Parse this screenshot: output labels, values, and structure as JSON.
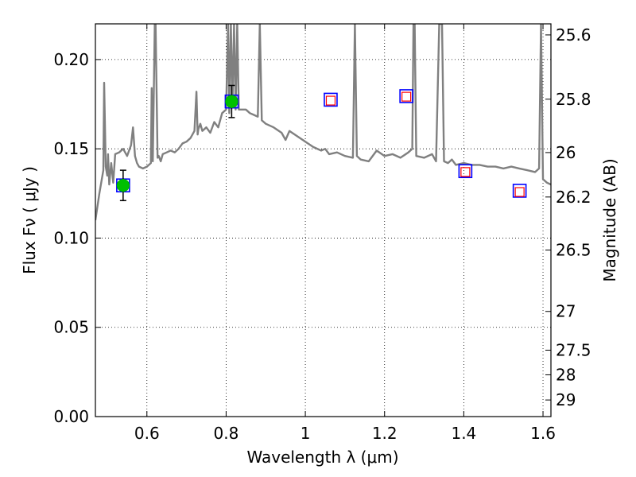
{
  "chart_data": {
    "type": "scatter",
    "xlabel": "Wavelength  λ (μm)",
    "ylabel_left": "Flux  Fν  ( μJy )",
    "ylabel_right": "Magnitude (AB)",
    "xlim": [
      0.47,
      1.62
    ],
    "ylim": [
      0.0,
      0.22
    ],
    "grid": true,
    "x_ticks": [
      0.6,
      0.8,
      1.0,
      1.2,
      1.4,
      1.6
    ],
    "x_tick_labels": [
      "0.6",
      "0.8",
      "1",
      "1.2",
      "1.4",
      "1.6"
    ],
    "y_ticks": [
      0.0,
      0.05,
      0.1,
      0.15,
      0.2
    ],
    "y_tick_labels": [
      "0.00",
      "0.05",
      "0.10",
      "0.15",
      "0.20"
    ],
    "right_ticks": [
      {
        "label": "25.6",
        "flux": 0.2138
      },
      {
        "label": "25.8",
        "flux": 0.1778
      },
      {
        "label": "26",
        "flux": 0.1479
      },
      {
        "label": "26.2",
        "flux": 0.123
      },
      {
        "label": "26.5",
        "flux": 0.0933
      },
      {
        "label": "27",
        "flux": 0.0589
      },
      {
        "label": "27.5",
        "flux": 0.0372
      },
      {
        "label": "28",
        "flux": 0.0234
      },
      {
        "label": "29",
        "flux": 0.0093
      }
    ],
    "observed": [
      {
        "x": 0.54,
        "y": 0.1295,
        "yerr": 0.0085
      },
      {
        "x": 0.814,
        "y": 0.1765,
        "yerr": 0.009
      }
    ],
    "model_band_fluxes": [
      {
        "x": 0.54,
        "y": 0.1295
      },
      {
        "x": 0.814,
        "y": 0.1765
      },
      {
        "x": 1.064,
        "y": 0.1775
      },
      {
        "x": 1.255,
        "y": 0.1795
      },
      {
        "x": 1.404,
        "y": 0.1375
      },
      {
        "x": 1.541,
        "y": 0.1265
      }
    ],
    "predicted": [
      {
        "x": 1.064,
        "y": 0.177
      },
      {
        "x": 1.255,
        "y": 0.1792
      },
      {
        "x": 1.404,
        "y": 0.137
      },
      {
        "x": 1.541,
        "y": 0.1258
      }
    ],
    "spectrum": {
      "x": [
        0.47,
        0.48,
        0.49,
        0.492,
        0.496,
        0.5,
        0.502,
        0.505,
        0.51,
        0.515,
        0.52,
        0.53,
        0.54,
        0.55,
        0.56,
        0.565,
        0.57,
        0.575,
        0.58,
        0.59,
        0.6,
        0.61,
        0.612,
        0.615,
        0.62,
        0.622,
        0.627,
        0.63,
        0.635,
        0.64,
        0.65,
        0.66,
        0.67,
        0.68,
        0.69,
        0.7,
        0.71,
        0.72,
        0.725,
        0.728,
        0.73,
        0.735,
        0.74,
        0.75,
        0.76,
        0.77,
        0.78,
        0.79,
        0.8,
        0.805,
        0.808,
        0.812,
        0.816,
        0.82,
        0.824,
        0.828,
        0.832,
        0.84,
        0.85,
        0.86,
        0.87,
        0.88,
        0.885,
        0.89,
        0.895,
        0.9,
        0.92,
        0.94,
        0.95,
        0.96,
        0.98,
        1.0,
        1.02,
        1.04,
        1.05,
        1.06,
        1.08,
        1.1,
        1.12,
        1.125,
        1.13,
        1.14,
        1.16,
        1.18,
        1.2,
        1.22,
        1.24,
        1.26,
        1.27,
        1.273,
        1.276,
        1.28,
        1.3,
        1.32,
        1.33,
        1.338,
        1.345,
        1.35,
        1.36,
        1.37,
        1.38,
        1.4,
        1.42,
        1.44,
        1.46,
        1.48,
        1.5,
        1.52,
        1.54,
        1.56,
        1.58,
        1.59,
        1.595,
        1.6,
        1.61,
        1.62
      ],
      "y": [
        0.11,
        0.125,
        0.138,
        0.187,
        0.14,
        0.135,
        0.147,
        0.13,
        0.142,
        0.131,
        0.147,
        0.148,
        0.15,
        0.146,
        0.152,
        0.162,
        0.146,
        0.142,
        0.14,
        0.139,
        0.14,
        0.142,
        0.184,
        0.143,
        0.22,
        0.22,
        0.145,
        0.146,
        0.143,
        0.147,
        0.148,
        0.149,
        0.148,
        0.15,
        0.153,
        0.154,
        0.156,
        0.16,
        0.182,
        0.158,
        0.161,
        0.164,
        0.16,
        0.162,
        0.159,
        0.165,
        0.162,
        0.17,
        0.172,
        0.22,
        0.17,
        0.22,
        0.174,
        0.22,
        0.172,
        0.22,
        0.172,
        0.172,
        0.172,
        0.17,
        0.169,
        0.168,
        0.22,
        0.166,
        0.165,
        0.164,
        0.162,
        0.159,
        0.155,
        0.16,
        0.157,
        0.154,
        0.151,
        0.149,
        0.15,
        0.147,
        0.148,
        0.146,
        0.145,
        0.22,
        0.146,
        0.144,
        0.143,
        0.149,
        0.146,
        0.147,
        0.145,
        0.148,
        0.15,
        0.22,
        0.22,
        0.146,
        0.145,
        0.147,
        0.143,
        0.22,
        0.22,
        0.143,
        0.142,
        0.144,
        0.141,
        0.142,
        0.141,
        0.141,
        0.14,
        0.14,
        0.139,
        0.14,
        0.139,
        0.138,
        0.137,
        0.139,
        0.22,
        0.133,
        0.131,
        0.13
      ]
    }
  }
}
